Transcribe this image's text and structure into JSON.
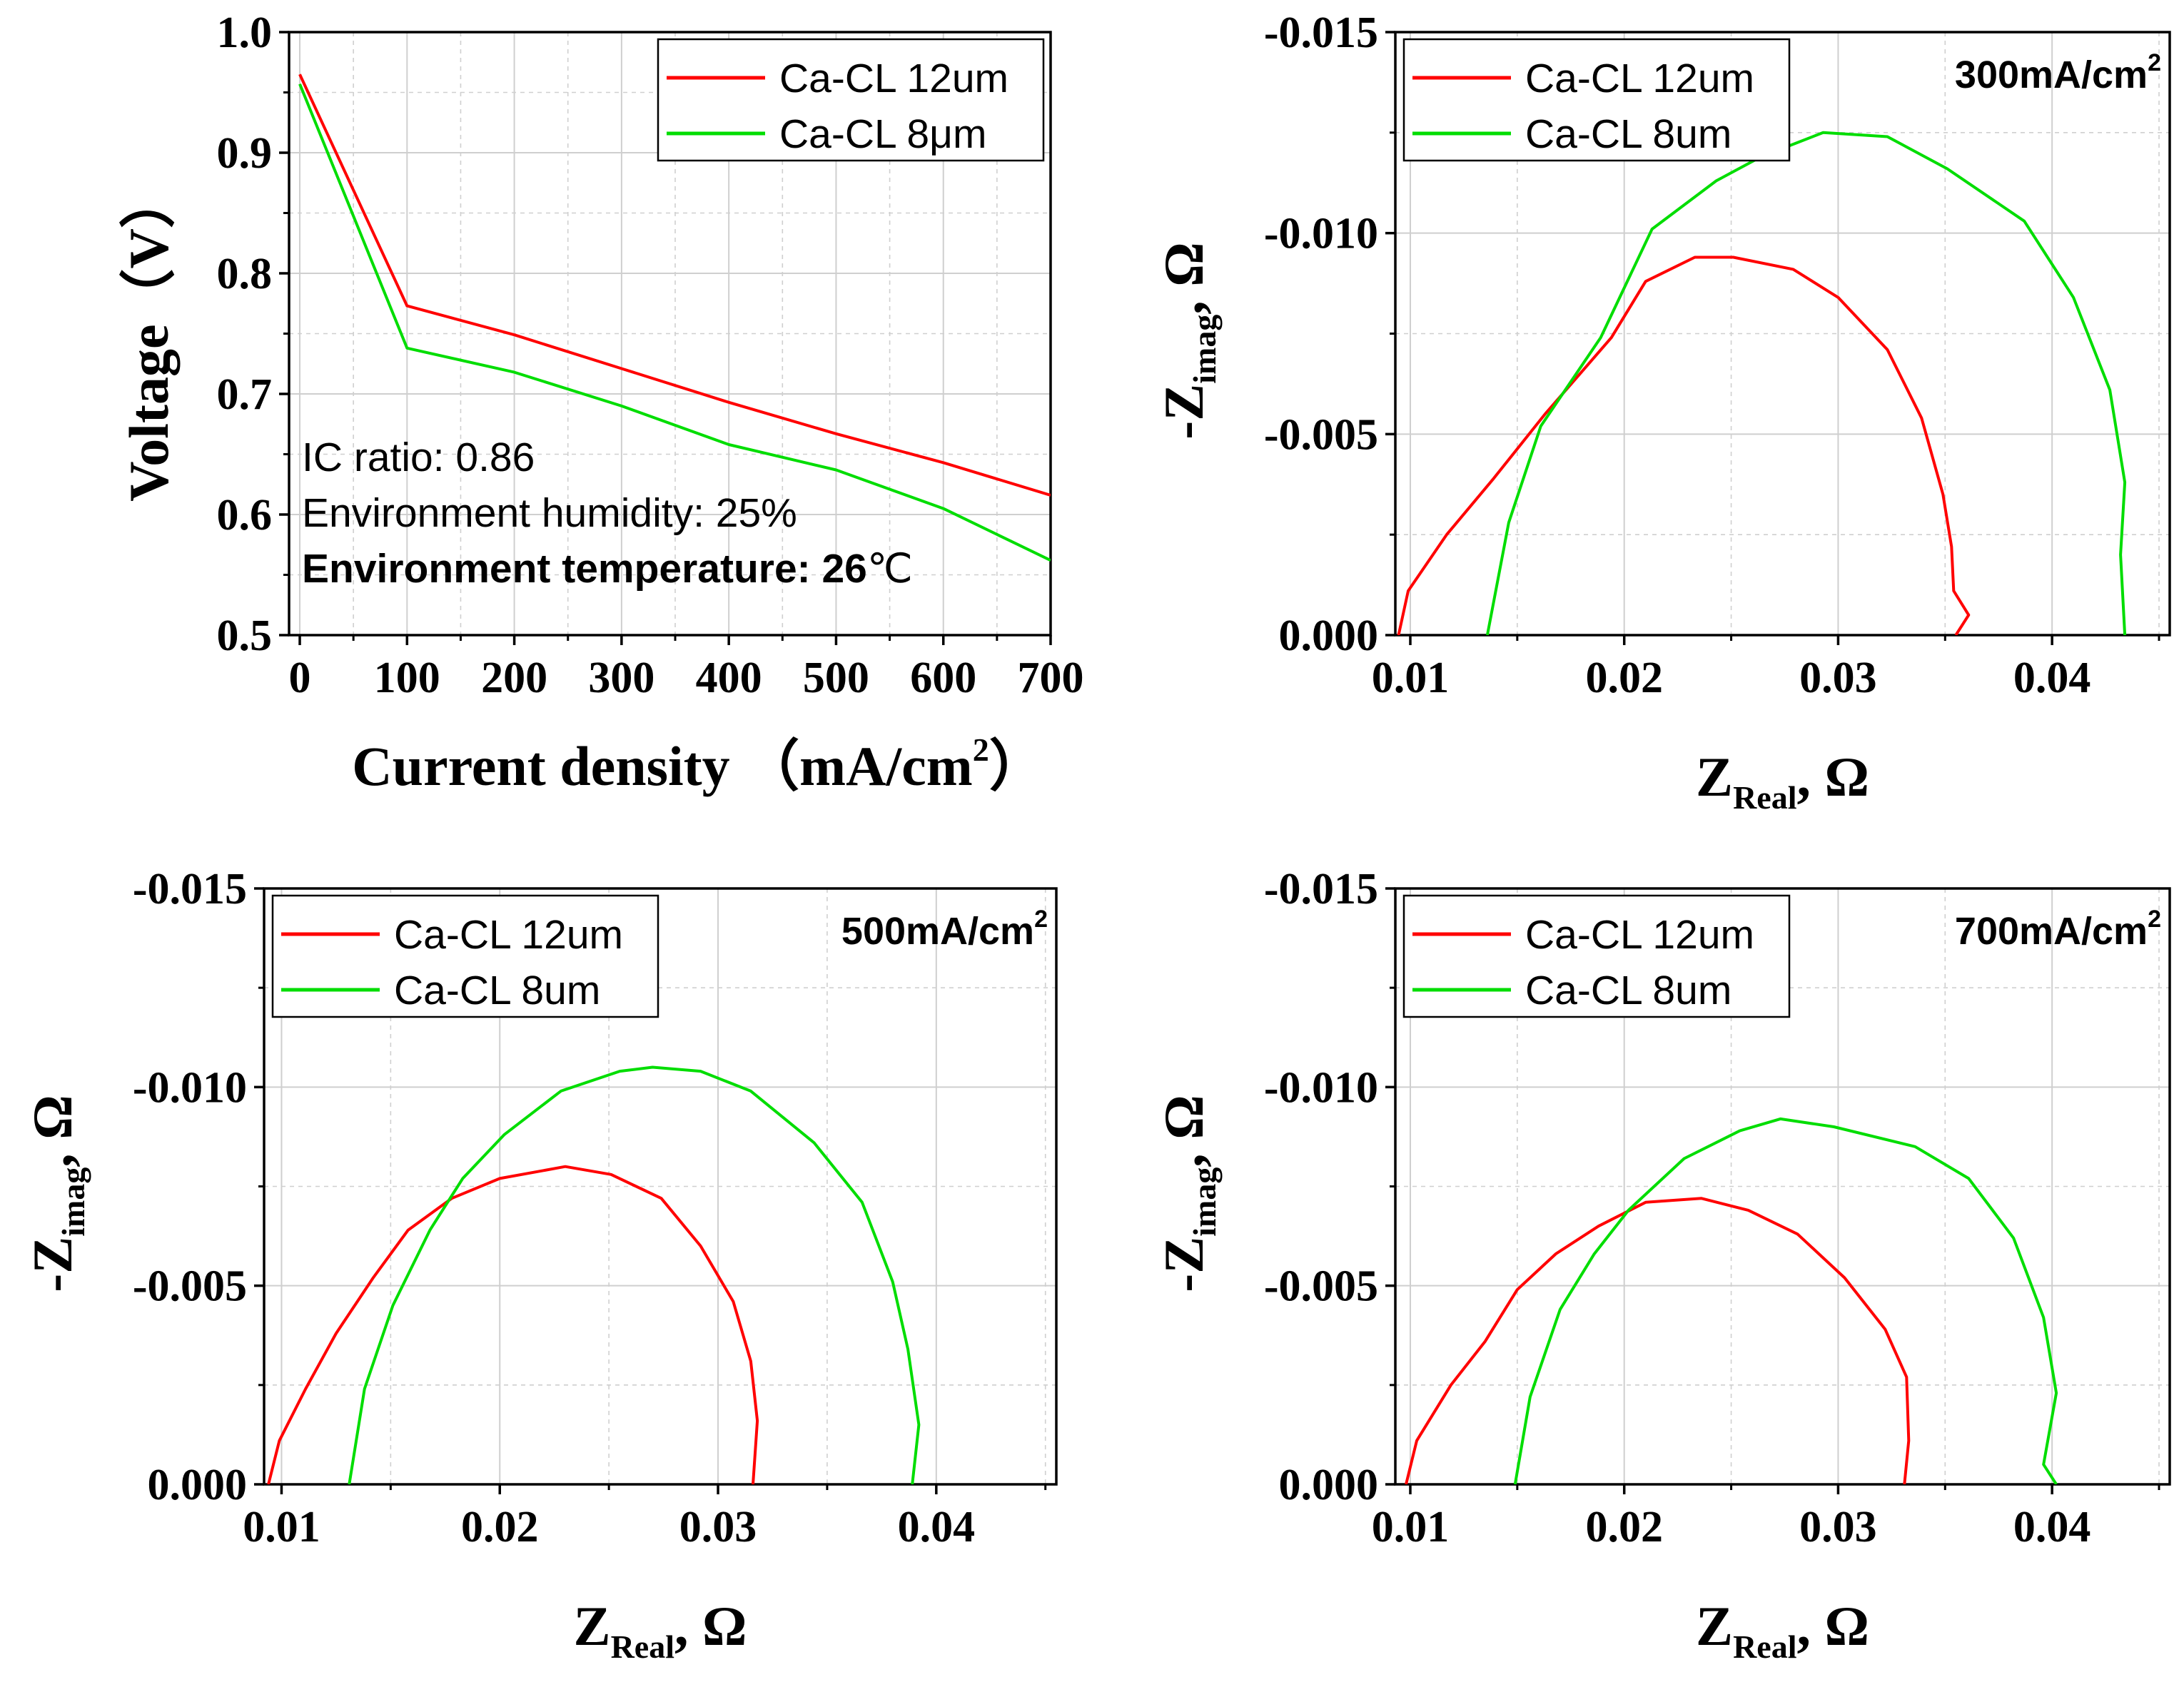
{
  "colors": {
    "series_12um": "#ff0000",
    "series_8um": "#00dd00",
    "grid": "#cfcfcf",
    "axis": "#000000"
  },
  "chart_data": [
    {
      "id": "polarization",
      "type": "line",
      "title": "",
      "xlabel": "Current density （mA/cm",
      "xlabel_sup": "2",
      "xlabel_close": "）",
      "ylabel": "Voltage（V）",
      "xlim": [
        -10,
        700
      ],
      "ylim": [
        0.5,
        1.0
      ],
      "xticks": [
        "0",
        "100",
        "200",
        "300",
        "400",
        "500",
        "600",
        "700"
      ],
      "xtick_values": [
        0,
        100,
        200,
        300,
        400,
        500,
        600,
        700
      ],
      "yticks": [
        "0.5",
        "0.6",
        "0.7",
        "0.8",
        "0.9",
        "1.0"
      ],
      "ytick_values": [
        0.5,
        0.6,
        0.7,
        0.8,
        0.9,
        1.0
      ],
      "grid": true,
      "legend_position": "top-right",
      "annotations": [
        {
          "text": "IC ratio: 0.86",
          "bold": false
        },
        {
          "text": "Environment humidity: 25%",
          "bold": false
        },
        {
          "text": "Environment temperature: 26",
          "bold": true,
          "suffix": "℃"
        }
      ],
      "series": [
        {
          "name": "Ca-CL 12um",
          "color_key": "series_12um",
          "points": [
            [
              0,
              0.965
            ],
            [
              100,
              0.773
            ],
            [
              200,
              0.749
            ],
            [
              300,
              0.721
            ],
            [
              400,
              0.693
            ],
            [
              500,
              0.667
            ],
            [
              600,
              0.643
            ],
            [
              700,
              0.616
            ]
          ]
        },
        {
          "name": "Ca-CL 8μm",
          "color_key": "series_8um",
          "points": [
            [
              0,
              0.957
            ],
            [
              100,
              0.738
            ],
            [
              200,
              0.718
            ],
            [
              300,
              0.69
            ],
            [
              400,
              0.658
            ],
            [
              500,
              0.637
            ],
            [
              600,
              0.605
            ],
            [
              700,
              0.562
            ]
          ]
        }
      ]
    },
    {
      "id": "eis-300",
      "type": "line",
      "title_label": "300mA/cm",
      "title_sup": "2",
      "xlabel": "Z",
      "xlabel_sub": "Real",
      "xlabel_tail": ", Ω",
      "ylabel": "-Z",
      "ylabel_sub": "imag",
      "ylabel_tail": ", Ω",
      "xlim": [
        0.0093,
        0.0455
      ],
      "ylim": [
        0.0,
        -0.015
      ],
      "xticks": [
        "0.01",
        "0.02",
        "0.03",
        "0.04"
      ],
      "xtick_values": [
        0.01,
        0.02,
        0.03,
        0.04
      ],
      "yticks": [
        "0.000",
        "-0.005",
        "-0.010",
        "-0.015"
      ],
      "ytick_values": [
        0.0,
        -0.005,
        -0.01,
        -0.015
      ],
      "grid": true,
      "legend_position": "top-left",
      "series": [
        {
          "name": "Ca-CL 12um",
          "color_key": "series_12um",
          "points": [
            [
              0.00945,
              0.0
            ],
            [
              0.0099,
              -0.0011
            ],
            [
              0.0117,
              -0.0025
            ],
            [
              0.0139,
              -0.0039
            ],
            [
              0.0163,
              -0.0055
            ],
            [
              0.0194,
              -0.0074
            ],
            [
              0.021,
              -0.0088
            ],
            [
              0.0233,
              -0.0094
            ],
            [
              0.0251,
              -0.0094
            ],
            [
              0.0279,
              -0.0091
            ],
            [
              0.03,
              -0.0084
            ],
            [
              0.0323,
              -0.0071
            ],
            [
              0.0339,
              -0.0054
            ],
            [
              0.0349,
              -0.0035
            ],
            [
              0.0353,
              -0.0022
            ],
            [
              0.0354,
              -0.0011
            ],
            [
              0.0361,
              -0.0005
            ],
            [
              0.0355,
              0.0
            ]
          ]
        },
        {
          "name": "Ca-CL 8um",
          "color_key": "series_8um",
          "points": [
            [
              0.0136,
              0.0
            ],
            [
              0.0146,
              -0.0028
            ],
            [
              0.0161,
              -0.0052
            ],
            [
              0.0189,
              -0.0074
            ],
            [
              0.0213,
              -0.0101
            ],
            [
              0.0243,
              -0.0113
            ],
            [
              0.0264,
              -0.0119
            ],
            [
              0.0293,
              -0.0125
            ],
            [
              0.0323,
              -0.0124
            ],
            [
              0.0351,
              -0.0116
            ],
            [
              0.0387,
              -0.0103
            ],
            [
              0.041,
              -0.0084
            ],
            [
              0.0427,
              -0.0061
            ],
            [
              0.0434,
              -0.0038
            ],
            [
              0.0432,
              -0.002
            ],
            [
              0.0434,
              0.0
            ]
          ]
        }
      ]
    },
    {
      "id": "eis-500",
      "type": "line",
      "title_label": "500mA/cm",
      "title_sup": "2",
      "xlabel": "Z",
      "xlabel_sub": "Real",
      "xlabel_tail": ", Ω",
      "ylabel": "-Z",
      "ylabel_sub": "imag",
      "ylabel_tail": ", Ω",
      "xlim": [
        0.0092,
        0.0455
      ],
      "ylim": [
        0.0,
        -0.015
      ],
      "xticks": [
        "0.01",
        "0.02",
        "0.03",
        "0.04"
      ],
      "xtick_values": [
        0.01,
        0.02,
        0.03,
        0.04
      ],
      "yticks": [
        "0.000",
        "-0.005",
        "-0.010",
        "-0.015"
      ],
      "ytick_values": [
        0.0,
        -0.005,
        -0.01,
        -0.015
      ],
      "grid": true,
      "legend_position": "top-left",
      "series": [
        {
          "name": "Ca-CL 12um",
          "color_key": "series_12um",
          "points": [
            [
              0.0094,
              0.0
            ],
            [
              0.0099,
              -0.0011
            ],
            [
              0.0111,
              -0.0024
            ],
            [
              0.0125,
              -0.0038
            ],
            [
              0.0142,
              -0.0052
            ],
            [
              0.0158,
              -0.0064
            ],
            [
              0.0178,
              -0.0072
            ],
            [
              0.02,
              -0.0077
            ],
            [
              0.023,
              -0.008
            ],
            [
              0.0251,
              -0.0078
            ],
            [
              0.0274,
              -0.0072
            ],
            [
              0.0292,
              -0.006
            ],
            [
              0.0307,
              -0.0046
            ],
            [
              0.0315,
              -0.0031
            ],
            [
              0.0318,
              -0.0016
            ],
            [
              0.0316,
              0.0
            ]
          ]
        },
        {
          "name": "Ca-CL 8um",
          "color_key": "series_8um",
          "points": [
            [
              0.0131,
              0.0
            ],
            [
              0.0138,
              -0.0024
            ],
            [
              0.0151,
              -0.0045
            ],
            [
              0.0168,
              -0.0064
            ],
            [
              0.0183,
              -0.0077
            ],
            [
              0.0202,
              -0.0088
            ],
            [
              0.0228,
              -0.0099
            ],
            [
              0.0255,
              -0.0104
            ],
            [
              0.027,
              -0.0105
            ],
            [
              0.0292,
              -0.0104
            ],
            [
              0.0315,
              -0.0099
            ],
            [
              0.0344,
              -0.0086
            ],
            [
              0.0366,
              -0.0071
            ],
            [
              0.038,
              -0.0051
            ],
            [
              0.0387,
              -0.0034
            ],
            [
              0.0392,
              -0.0015
            ],
            [
              0.0389,
              0.0
            ]
          ]
        }
      ]
    },
    {
      "id": "eis-700",
      "type": "line",
      "title_label": "700mA/cm",
      "title_sup": "2",
      "xlabel": "Z",
      "xlabel_sub": "Real",
      "xlabel_tail": ", Ω",
      "ylabel": "-Z",
      "ylabel_sub": "imag",
      "ylabel_tail": ", Ω",
      "xlim": [
        0.0093,
        0.0455
      ],
      "ylim": [
        0.0,
        -0.015
      ],
      "xticks": [
        "0.01",
        "0.02",
        "0.03",
        "0.04"
      ],
      "xtick_values": [
        0.01,
        0.02,
        0.03,
        0.04
      ],
      "yticks": [
        "0.000",
        "-0.005",
        "-0.010",
        "-0.015"
      ],
      "ytick_values": [
        0.0,
        -0.005,
        -0.01,
        -0.015
      ],
      "grid": true,
      "legend_position": "top-left",
      "series": [
        {
          "name": "Ca-CL 12um",
          "color_key": "series_12um",
          "points": [
            [
              0.0098,
              0.0
            ],
            [
              0.0103,
              -0.0011
            ],
            [
              0.0119,
              -0.0025
            ],
            [
              0.0135,
              -0.0036
            ],
            [
              0.015,
              -0.0049
            ],
            [
              0.0168,
              -0.0058
            ],
            [
              0.0188,
              -0.0065
            ],
            [
              0.021,
              -0.0071
            ],
            [
              0.0236,
              -0.0072
            ],
            [
              0.0258,
              -0.0069
            ],
            [
              0.0281,
              -0.0063
            ],
            [
              0.0303,
              -0.0052
            ],
            [
              0.0322,
              -0.0039
            ],
            [
              0.0332,
              -0.0027
            ],
            [
              0.0333,
              -0.0011
            ],
            [
              0.0331,
              0.0
            ]
          ]
        },
        {
          "name": "Ca-CL 8um",
          "color_key": "series_8um",
          "points": [
            [
              0.0149,
              0.0
            ],
            [
              0.0156,
              -0.0022
            ],
            [
              0.017,
              -0.0044
            ],
            [
              0.0186,
              -0.0058
            ],
            [
              0.0202,
              -0.0069
            ],
            [
              0.0228,
              -0.0082
            ],
            [
              0.0254,
              -0.0089
            ],
            [
              0.0273,
              -0.0092
            ],
            [
              0.0298,
              -0.009
            ],
            [
              0.0336,
              -0.0085
            ],
            [
              0.0361,
              -0.0077
            ],
            [
              0.0382,
              -0.0062
            ],
            [
              0.0396,
              -0.0042
            ],
            [
              0.0402,
              -0.0023
            ],
            [
              0.0396,
              -0.0005
            ],
            [
              0.0402,
              0.0
            ]
          ]
        }
      ]
    }
  ]
}
